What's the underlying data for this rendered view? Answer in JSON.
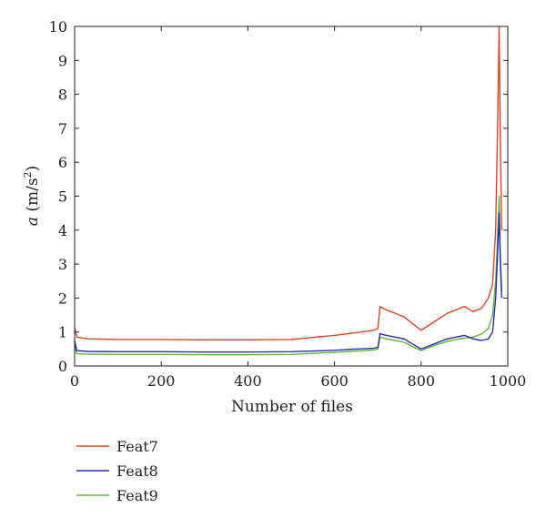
{
  "chart_data": {
    "type": "line",
    "xlabel": "Number of files",
    "ylabel": {
      "var": "a",
      "unit_prefix": " (m/s",
      "unit_exp": "2",
      "unit_suffix": ")"
    },
    "xlim": [
      0,
      1000
    ],
    "ylim": [
      0,
      10
    ],
    "xticks": [
      0,
      200,
      400,
      600,
      800,
      1000
    ],
    "yticks": [
      0,
      1,
      2,
      3,
      4,
      5,
      6,
      7,
      8,
      9,
      10
    ],
    "grid": false,
    "legend_position": "bottom-left",
    "x": [
      0,
      5,
      30,
      100,
      200,
      300,
      400,
      500,
      600,
      650,
      690,
      700,
      705,
      720,
      760,
      800,
      830,
      860,
      880,
      900,
      920,
      940,
      955,
      965,
      972,
      977,
      980,
      983,
      986
    ],
    "series": [
      {
        "name": "Feat7",
        "color": "#e0451f",
        "values": [
          1.15,
          0.85,
          0.8,
          0.78,
          0.78,
          0.77,
          0.77,
          0.78,
          0.9,
          0.98,
          1.05,
          1.1,
          1.75,
          1.65,
          1.45,
          1.05,
          1.3,
          1.55,
          1.65,
          1.75,
          1.6,
          1.7,
          2.0,
          2.4,
          4.0,
          7.5,
          10.0,
          6.5,
          4.0
        ]
      },
      {
        "name": "Feat8",
        "color": "#2b2bb8",
        "values": [
          0.75,
          0.45,
          0.43,
          0.42,
          0.42,
          0.41,
          0.41,
          0.42,
          0.46,
          0.5,
          0.52,
          0.55,
          0.95,
          0.9,
          0.8,
          0.5,
          0.65,
          0.8,
          0.85,
          0.9,
          0.8,
          0.75,
          0.8,
          1.0,
          2.0,
          3.5,
          4.5,
          3.0,
          2.0
        ]
      },
      {
        "name": "Feat9",
        "color": "#5cb83c",
        "values": [
          0.6,
          0.36,
          0.35,
          0.34,
          0.34,
          0.33,
          0.33,
          0.34,
          0.4,
          0.44,
          0.47,
          0.5,
          0.85,
          0.8,
          0.7,
          0.45,
          0.6,
          0.72,
          0.78,
          0.82,
          0.85,
          0.95,
          1.1,
          1.5,
          2.5,
          4.0,
          5.0,
          3.2,
          2.2
        ]
      }
    ]
  }
}
